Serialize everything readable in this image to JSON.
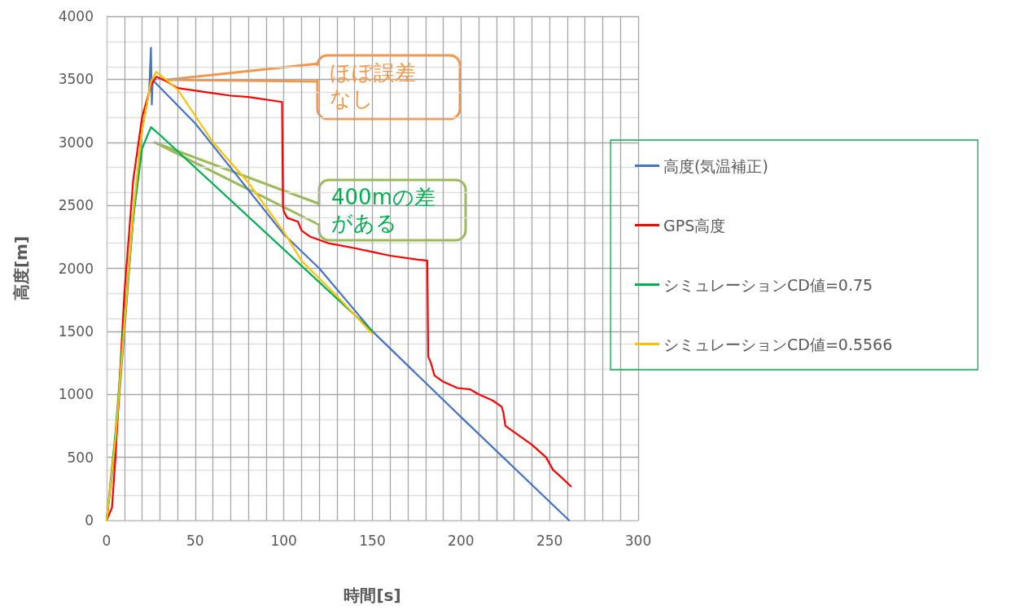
{
  "chart_data": {
    "type": "line",
    "xlabel": "時間[s]",
    "ylabel": "高度[m]",
    "xlim": [
      0,
      300
    ],
    "xticks": [
      0,
      50,
      100,
      150,
      200,
      250,
      300
    ],
    "ylim": [
      0,
      4000
    ],
    "yticks": [
      0,
      500,
      1000,
      1500,
      2000,
      2500,
      3000,
      3500,
      4000
    ],
    "grid": true,
    "legend": "right",
    "marker": "none",
    "line_style": "solid",
    "series": [
      {
        "name": "高度(気温補正)",
        "color": "#4472c4",
        "x": [
          0,
          5,
          10,
          15,
          20,
          24,
          25,
          25.5,
          26,
          27,
          50,
          100,
          120,
          150,
          200,
          261
        ],
        "values": [
          0,
          600,
          1500,
          2400,
          3100,
          3400,
          3750,
          3300,
          3500,
          3480,
          3150,
          2270,
          2000,
          1500,
          820,
          0
        ]
      },
      {
        "name": "GPS高度",
        "color": "#ff0000",
        "x": [
          0,
          3,
          5,
          10,
          15,
          20,
          25,
          28,
          33,
          40,
          60,
          70,
          80,
          99,
          99.5,
          100,
          102,
          108,
          110,
          115,
          125,
          140,
          150,
          160,
          175,
          181,
          181.5,
          183,
          185,
          190,
          198,
          205,
          210,
          218,
          223,
          224,
          225,
          230,
          240,
          248,
          252,
          256,
          262
        ],
        "values": [
          0,
          100,
          500,
          1800,
          2700,
          3200,
          3450,
          3520,
          3490,
          3430,
          3390,
          3370,
          3360,
          3320,
          2500,
          2450,
          2400,
          2370,
          2300,
          2250,
          2200,
          2160,
          2130,
          2100,
          2070,
          2060,
          1300,
          1250,
          1150,
          1100,
          1050,
          1040,
          1000,
          950,
          900,
          850,
          750,
          700,
          600,
          500,
          400,
          350,
          270
        ]
      },
      {
        "name": "シミュレーションCD値=0.75",
        "color": "#00b050",
        "x": [
          0,
          5,
          10,
          15,
          20,
          25,
          30,
          150
        ],
        "values": [
          0,
          700,
          1600,
          2400,
          2950,
          3120,
          3060,
          1500
        ]
      },
      {
        "name": "シミュレーションCD値=0.5566",
        "color": "#ffc000",
        "x": [
          0,
          5,
          10,
          15,
          20,
          25,
          28,
          40,
          60,
          80,
          100,
          110,
          130,
          150
        ],
        "values": [
          0,
          650,
          1550,
          2450,
          3100,
          3480,
          3560,
          3420,
          3000,
          2680,
          2290,
          2060,
          1780,
          1480
        ]
      }
    ],
    "annotations": [
      "ほぼ誤差なし",
      "400mの差がある"
    ]
  }
}
